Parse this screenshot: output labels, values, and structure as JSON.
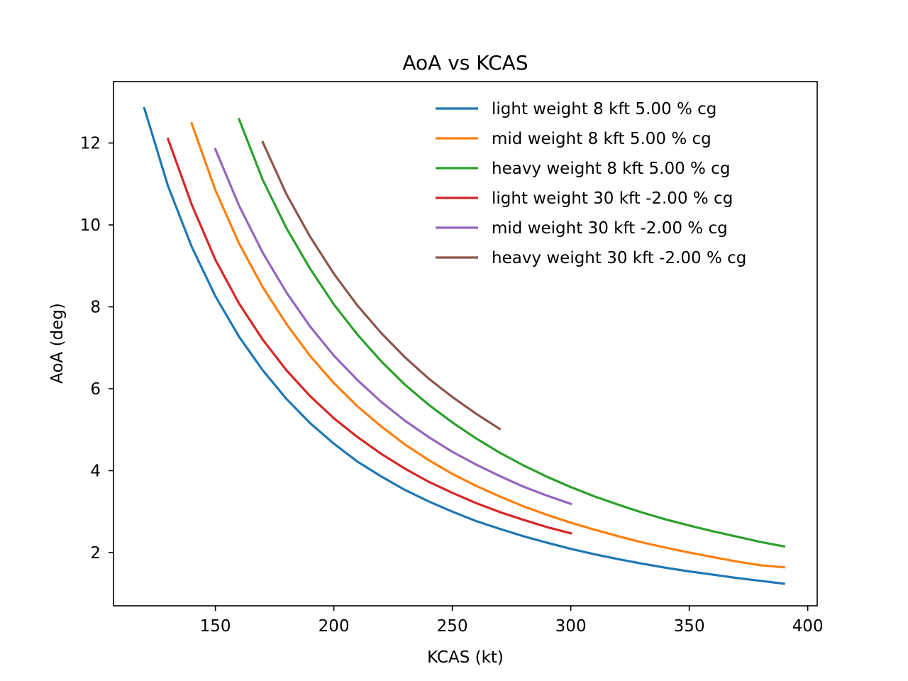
{
  "chart_data": {
    "type": "line",
    "title": "AoA vs KCAS",
    "xlabel": "KCAS (kt)",
    "ylabel": "AoA (deg)",
    "xlim": [
      107,
      404
    ],
    "ylim": [
      0.7,
      13.5
    ],
    "xticks": [
      150,
      200,
      250,
      300,
      350,
      400
    ],
    "yticks": [
      2,
      4,
      6,
      8,
      10,
      12
    ],
    "grid": false,
    "legend": "top-right",
    "series": [
      {
        "name": "light weight 8 kft 5.00 % cg",
        "color": "#1f77b4",
        "x": [
          120,
          130,
          140,
          150,
          160,
          170,
          180,
          190,
          200,
          210,
          220,
          230,
          240,
          250,
          260,
          270,
          280,
          290,
          300,
          310,
          320,
          330,
          340,
          350,
          360,
          370,
          380,
          390
        ],
        "y": [
          12.85,
          10.95,
          9.47,
          8.26,
          7.27,
          6.45,
          5.75,
          5.16,
          4.66,
          4.22,
          3.86,
          3.53,
          3.25,
          3.0,
          2.77,
          2.58,
          2.4,
          2.24,
          2.09,
          1.96,
          1.84,
          1.73,
          1.63,
          1.54,
          1.46,
          1.38,
          1.31,
          1.24
        ]
      },
      {
        "name": "mid weight 8 kft 5.00 % cg",
        "color": "#ff7f0e",
        "x": [
          140,
          150,
          160,
          170,
          180,
          190,
          200,
          210,
          220,
          230,
          240,
          250,
          260,
          270,
          280,
          290,
          300,
          310,
          320,
          330,
          340,
          350,
          360,
          370,
          380,
          390
        ],
        "y": [
          12.48,
          10.85,
          9.55,
          8.48,
          7.58,
          6.8,
          6.14,
          5.57,
          5.08,
          4.64,
          4.26,
          3.92,
          3.63,
          3.37,
          3.13,
          2.92,
          2.73,
          2.56,
          2.4,
          2.25,
          2.12,
          2.0,
          1.89,
          1.78,
          1.69,
          1.64
        ]
      },
      {
        "name": "heavy weight 8 kft 5.00 % cg",
        "color": "#2ca02c",
        "x": [
          160,
          170,
          180,
          190,
          200,
          210,
          220,
          230,
          240,
          250,
          260,
          270,
          280,
          290,
          300,
          310,
          320,
          330,
          340,
          350,
          360,
          370,
          380,
          390
        ],
        "y": [
          12.58,
          11.1,
          9.92,
          8.93,
          8.06,
          7.32,
          6.67,
          6.1,
          5.61,
          5.18,
          4.79,
          4.44,
          4.13,
          3.85,
          3.6,
          3.37,
          3.17,
          2.98,
          2.81,
          2.66,
          2.52,
          2.39,
          2.26,
          2.15
        ]
      },
      {
        "name": "light weight 30 kft -2.00 % cg",
        "color": "#d62728",
        "x": [
          130,
          140,
          150,
          160,
          170,
          180,
          190,
          200,
          210,
          220,
          230,
          240,
          250,
          260,
          270,
          280,
          290,
          300
        ],
        "y": [
          12.1,
          10.5,
          9.15,
          8.08,
          7.2,
          6.45,
          5.82,
          5.28,
          4.82,
          4.41,
          4.05,
          3.73,
          3.46,
          3.21,
          2.99,
          2.8,
          2.62,
          2.47
        ]
      },
      {
        "name": "mid weight 30 kft -2.00 % cg",
        "color": "#9467bd",
        "x": [
          150,
          160,
          170,
          180,
          190,
          200,
          210,
          220,
          230,
          240,
          250,
          260,
          270,
          280,
          290,
          300
        ],
        "y": [
          11.85,
          10.47,
          9.32,
          8.35,
          7.52,
          6.81,
          6.21,
          5.68,
          5.22,
          4.82,
          4.46,
          4.15,
          3.87,
          3.61,
          3.39,
          3.19
        ]
      },
      {
        "name": "heavy weight 30 kft -2.00 % cg",
        "color": "#8c564b",
        "x": [
          170,
          180,
          190,
          200,
          210,
          220,
          230,
          240,
          250,
          260,
          270
        ],
        "y": [
          12.02,
          10.75,
          9.71,
          8.81,
          8.03,
          7.36,
          6.77,
          6.25,
          5.8,
          5.39,
          5.02
        ]
      }
    ]
  }
}
